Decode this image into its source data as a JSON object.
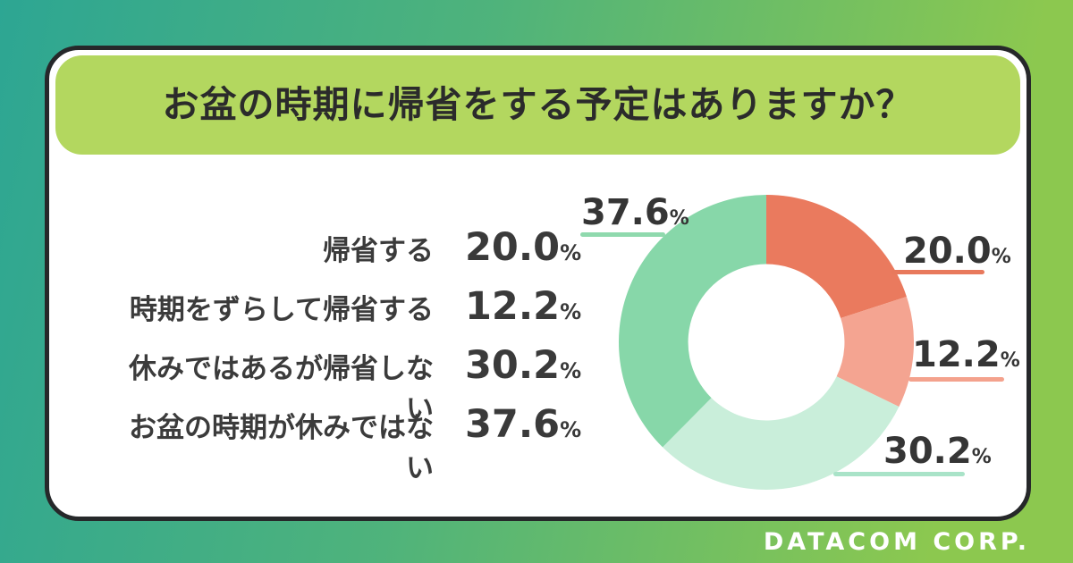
{
  "header": {
    "title": "お盆の時期に帰省をする予定はありますか？"
  },
  "legend": {
    "rows": [
      {
        "label": "帰省する",
        "value": "20.0",
        "unit": "%"
      },
      {
        "label": "時期をずらして帰省する",
        "value": "12.2",
        "unit": "%"
      },
      {
        "label": "休みではあるが帰省しない",
        "value": "30.2",
        "unit": "%"
      },
      {
        "label": "お盆の時期が休みではない",
        "value": "37.6",
        "unit": "%"
      }
    ]
  },
  "chart_data": {
    "type": "pie",
    "variant": "donut",
    "title": "お盆の時期に帰省をする予定はありますか？",
    "categories": [
      "帰省する",
      "時期をずらして帰省する",
      "休みではあるが帰省しない",
      "お盆の時期が休みではない"
    ],
    "values": [
      20.0,
      12.2,
      30.2,
      37.6
    ],
    "unit": "%",
    "colors": [
      "#ea7a5e",
      "#f4a491",
      "#c9eeda",
      "#87d7a9"
    ],
    "start_angle_deg": 0,
    "direction": "clockwise",
    "inner_radius_ratio": 0.53,
    "legend_position": "left"
  },
  "callouts": [
    {
      "value": "37.6",
      "unit": "%",
      "series_index": 3,
      "line_color": "#8fd9ad"
    },
    {
      "value": "20.0",
      "unit": "%",
      "series_index": 0,
      "line_color": "#e8795c"
    },
    {
      "value": "12.2",
      "unit": "%",
      "series_index": 1,
      "line_color": "#f4a28d"
    },
    {
      "value": "30.2",
      "unit": "%",
      "series_index": 2,
      "line_color": "#a9e3c8"
    }
  ],
  "footer": {
    "brand": "DATACOM CORP."
  },
  "colors": {
    "background_gradient_start": "#2da693",
    "background_gradient_end": "#8cc84f",
    "card_border": "#26282a",
    "banner": "#b3d75f",
    "text": "#3a3a3a"
  }
}
